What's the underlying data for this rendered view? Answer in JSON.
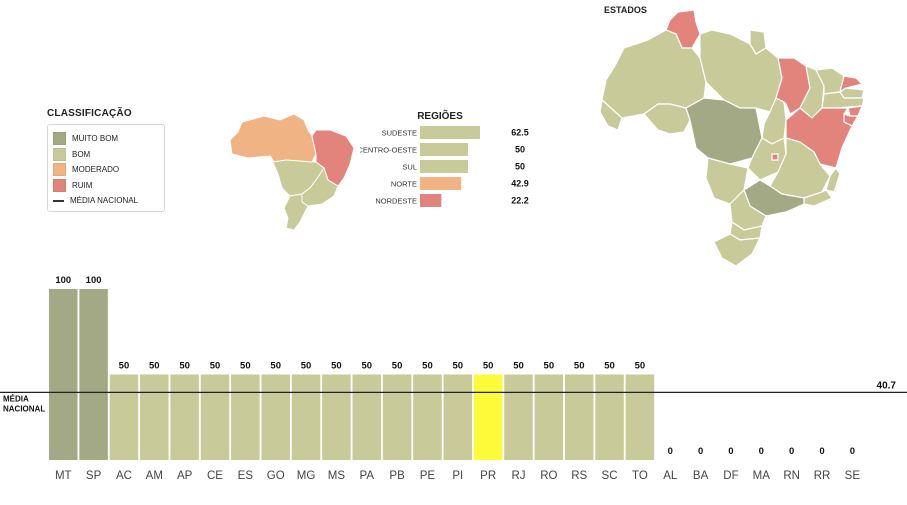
{
  "legend": {
    "title": "CLASSIFICAÇÃO",
    "items": [
      {
        "label": "MUITO BOM",
        "color": "#a3a984"
      },
      {
        "label": "BOM",
        "color": "#c9ca99"
      },
      {
        "label": "MODERADO",
        "color": "#f0b484"
      },
      {
        "label": "RUIM",
        "color": "#e2847c"
      }
    ],
    "line_label": "MÉDIA NACIONAL"
  },
  "estados_title": "ESTADOS",
  "colors": {
    "muito_bom": "#a3a984",
    "bom": "#c9ca99",
    "moderado": "#f0b484",
    "ruim": "#e2847c",
    "highlight": "#fbfb3a"
  },
  "chart_data": [
    {
      "type": "bar",
      "title": "REGIÕES",
      "orientation": "horizontal",
      "categories": [
        "SUDESTE",
        "CENTRO-OESTE",
        "SUL",
        "NORTE",
        "NORDESTE"
      ],
      "values": [
        62.5,
        50,
        50,
        42.9,
        22.2
      ],
      "value_labels": [
        "62.5",
        "50",
        "50",
        "42.9",
        "22.2"
      ],
      "classes": [
        "bom",
        "bom",
        "bom",
        "moderado",
        "ruim"
      ],
      "xlim": [
        0,
        100
      ]
    },
    {
      "type": "bar",
      "title": "",
      "categories": [
        "MT",
        "SP",
        "AC",
        "AM",
        "AP",
        "CE",
        "ES",
        "GO",
        "MG",
        "MS",
        "PA",
        "PB",
        "PE",
        "PI",
        "PR",
        "RJ",
        "RO",
        "RS",
        "SC",
        "TO",
        "AL",
        "BA",
        "DF",
        "MA",
        "RN",
        "RR",
        "SE"
      ],
      "values": [
        100,
        100,
        50,
        50,
        50,
        50,
        50,
        50,
        50,
        50,
        50,
        50,
        50,
        50,
        50,
        50,
        50,
        50,
        50,
        50,
        0,
        0,
        0,
        0,
        0,
        0,
        0
      ],
      "value_labels": [
        "100",
        "100",
        "50",
        "50",
        "50",
        "50",
        "50",
        "50",
        "50",
        "50",
        "50",
        "50",
        "50",
        "50",
        "50",
        "50",
        "50",
        "50",
        "50",
        "50",
        "0",
        "0",
        "0",
        "0",
        "0",
        "0",
        "0"
      ],
      "classes": [
        "muito_bom",
        "muito_bom",
        "bom",
        "bom",
        "bom",
        "bom",
        "bom",
        "bom",
        "bom",
        "bom",
        "bom",
        "bom",
        "bom",
        "bom",
        "highlight",
        "bom",
        "bom",
        "bom",
        "bom",
        "bom",
        "ruim",
        "ruim",
        "ruim",
        "ruim",
        "ruim",
        "ruim",
        "ruim"
      ],
      "ylim": [
        0,
        100
      ],
      "reference_line": {
        "label_line1": "MÉDIA",
        "label_line2": "NACIONAL",
        "value": 40.7,
        "value_label": "40.7"
      }
    }
  ]
}
